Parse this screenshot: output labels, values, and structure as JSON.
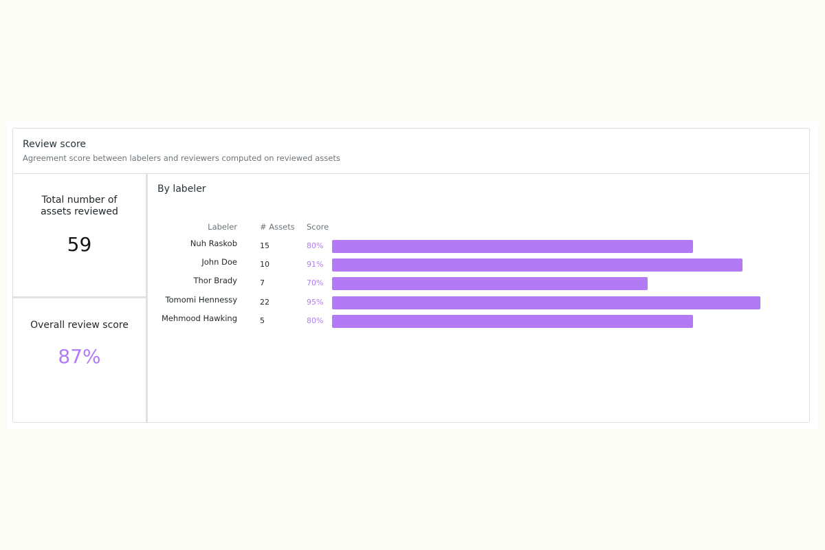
{
  "card": {
    "title": "Review score",
    "subtitle": "Agreement score between labelers and reviewers computed on reviewed assets"
  },
  "kpis": {
    "total_assets": {
      "label": "Total number of assets reviewed",
      "value": "59"
    },
    "overall_score": {
      "label": "Overall review score",
      "value": "87%"
    }
  },
  "by_labeler": {
    "title": "By labeler",
    "columns": {
      "labeler": "Labeler",
      "assets": "# Assets",
      "score": "Score"
    }
  },
  "colors": {
    "accent": "#b27bf5",
    "border": "#dcdfe2",
    "background": "#fbfcf6"
  },
  "chart_data": {
    "type": "bar",
    "orientation": "horizontal",
    "categories": [
      "Nuh Raskob",
      "John Doe",
      "Thor Brady",
      "Tomomi Hennessy",
      "Mehmood Hawking"
    ],
    "assets": [
      "15",
      "10",
      "7",
      "22",
      "5"
    ],
    "score_labels": [
      "80%",
      "91%",
      "70%",
      "95%",
      "80%"
    ],
    "values": [
      80,
      91,
      70,
      95,
      80
    ],
    "xlim": [
      0,
      100
    ],
    "grid": false,
    "legend": "none"
  }
}
